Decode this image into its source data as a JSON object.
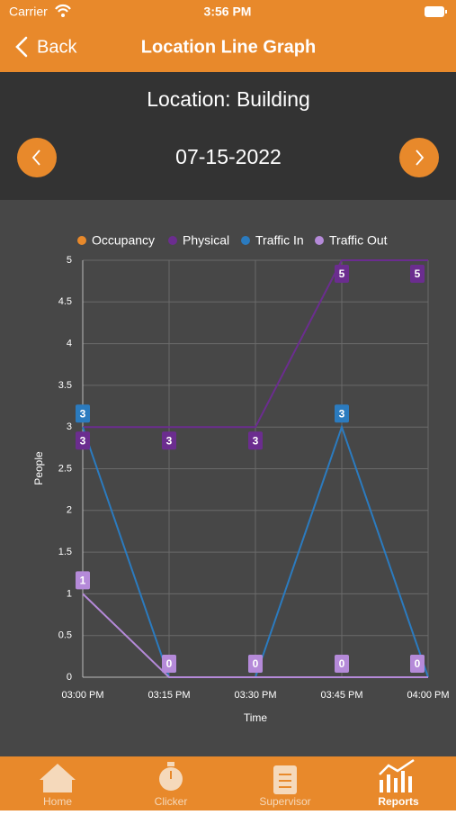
{
  "status": {
    "carrier": "Carrier",
    "time": "3:56 PM"
  },
  "nav": {
    "back": "Back",
    "title": "Location Line Graph"
  },
  "header": {
    "location": "Location: Building",
    "date": "07-15-2022"
  },
  "chart_data": {
    "type": "line",
    "categories": [
      "03:00 PM",
      "03:15 PM",
      "03:30 PM",
      "03:45 PM",
      "04:00 PM"
    ],
    "series": [
      {
        "name": "Occupancy",
        "color": "#e8892b",
        "values": [
          null,
          null,
          null,
          null,
          null
        ]
      },
      {
        "name": "Physical",
        "color": "#6b2d8f",
        "values": [
          3,
          3,
          3,
          5,
          5
        ]
      },
      {
        "name": "Traffic In",
        "color": "#2b7bbf",
        "values": [
          3,
          0,
          0,
          3,
          0
        ]
      },
      {
        "name": "Traffic Out",
        "color": "#b58ad9",
        "values": [
          1,
          0,
          0,
          0,
          0
        ]
      }
    ],
    "ylim": [
      0,
      5
    ],
    "yticks": [
      0,
      0.5,
      1,
      1.5,
      2,
      2.5,
      3,
      3.5,
      4,
      4.5,
      5
    ],
    "grid": true,
    "xlabel": "Time",
    "ylabel": "People"
  },
  "tabs": [
    "Home",
    "Clicker",
    "Supervisor",
    "Reports"
  ]
}
